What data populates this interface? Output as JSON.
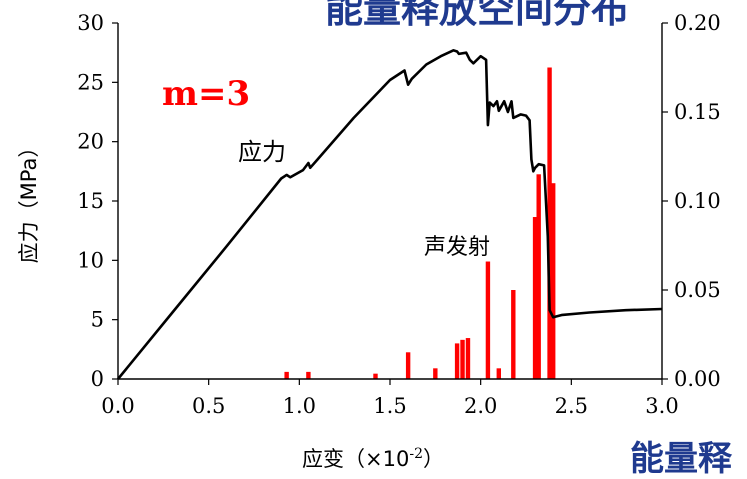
{
  "overlay": {
    "title_fragment": "能量释放空间分布",
    "bottom_fragment": "能量释"
  },
  "colors": {
    "stress_line": "#000000",
    "ae_bars": "#ff0000",
    "axis": "#000000",
    "highlight_text": "#ff0000",
    "overlay_text": "#1f3a8f"
  },
  "chart_data": {
    "type": "line",
    "title": "",
    "xlabel": "应变（×10",
    "xlabel_sup": "-2",
    "xlabel_close": "）",
    "ylabel": "应力（MPa）",
    "y2label": "",
    "xlim": [
      0.0,
      3.0
    ],
    "ylim": [
      0,
      30
    ],
    "y2lim": [
      0.0,
      0.2
    ],
    "x_ticks": [
      "0.0",
      "0.5",
      "1.0",
      "1.5",
      "2.0",
      "2.5",
      "3.0"
    ],
    "y_ticks": [
      "0",
      "5",
      "10",
      "15",
      "20",
      "25",
      "30"
    ],
    "y2_ticks": [
      "0.00",
      "0.05",
      "0.10",
      "0.15",
      "0.20"
    ],
    "annotations": [
      {
        "text": "m=3"
      },
      {
        "text": "应力"
      },
      {
        "text": "声发射"
      }
    ],
    "series": [
      {
        "name": "应力",
        "axis": "left",
        "x": [
          0.0,
          0.3,
          0.6,
          0.9,
          0.93,
          0.95,
          1.02,
          1.05,
          1.06,
          1.1,
          1.3,
          1.5,
          1.58,
          1.6,
          1.62,
          1.7,
          1.78,
          1.85,
          1.87,
          1.88,
          1.92,
          1.94,
          1.96,
          2.0,
          2.03,
          2.04,
          2.05,
          2.07,
          2.09,
          2.1,
          2.13,
          2.15,
          2.17,
          2.18,
          2.22,
          2.25,
          2.27,
          2.28,
          2.29,
          2.3,
          2.32,
          2.35,
          2.37,
          2.38,
          2.4,
          2.45,
          2.6,
          2.8,
          3.0
        ],
        "values": [
          0,
          5.6,
          11.2,
          16.9,
          17.2,
          17.0,
          17.6,
          18.2,
          17.8,
          18.5,
          22.0,
          25.2,
          26.0,
          24.8,
          25.3,
          26.5,
          27.2,
          27.7,
          27.6,
          27.4,
          27.5,
          26.9,
          26.6,
          27.2,
          26.9,
          21.4,
          23.3,
          23.0,
          23.4,
          22.6,
          23.4,
          22.5,
          23.4,
          22.0,
          22.3,
          22.2,
          21.8,
          18.5,
          17.5,
          17.8,
          18.1,
          18.0,
          12.0,
          5.8,
          5.2,
          5.4,
          5.6,
          5.8,
          5.9
        ]
      },
      {
        "name": "声发射",
        "axis": "right",
        "type": "bar",
        "x": [
          0.93,
          1.05,
          1.42,
          1.6,
          1.75,
          1.87,
          1.9,
          1.93,
          2.04,
          2.1,
          2.18,
          2.3,
          2.32,
          2.38,
          2.4
        ],
        "values": [
          0.004,
          0.004,
          0.003,
          0.015,
          0.006,
          0.02,
          0.022,
          0.023,
          0.066,
          0.006,
          0.05,
          0.091,
          0.115,
          0.175,
          0.11
        ]
      }
    ]
  }
}
